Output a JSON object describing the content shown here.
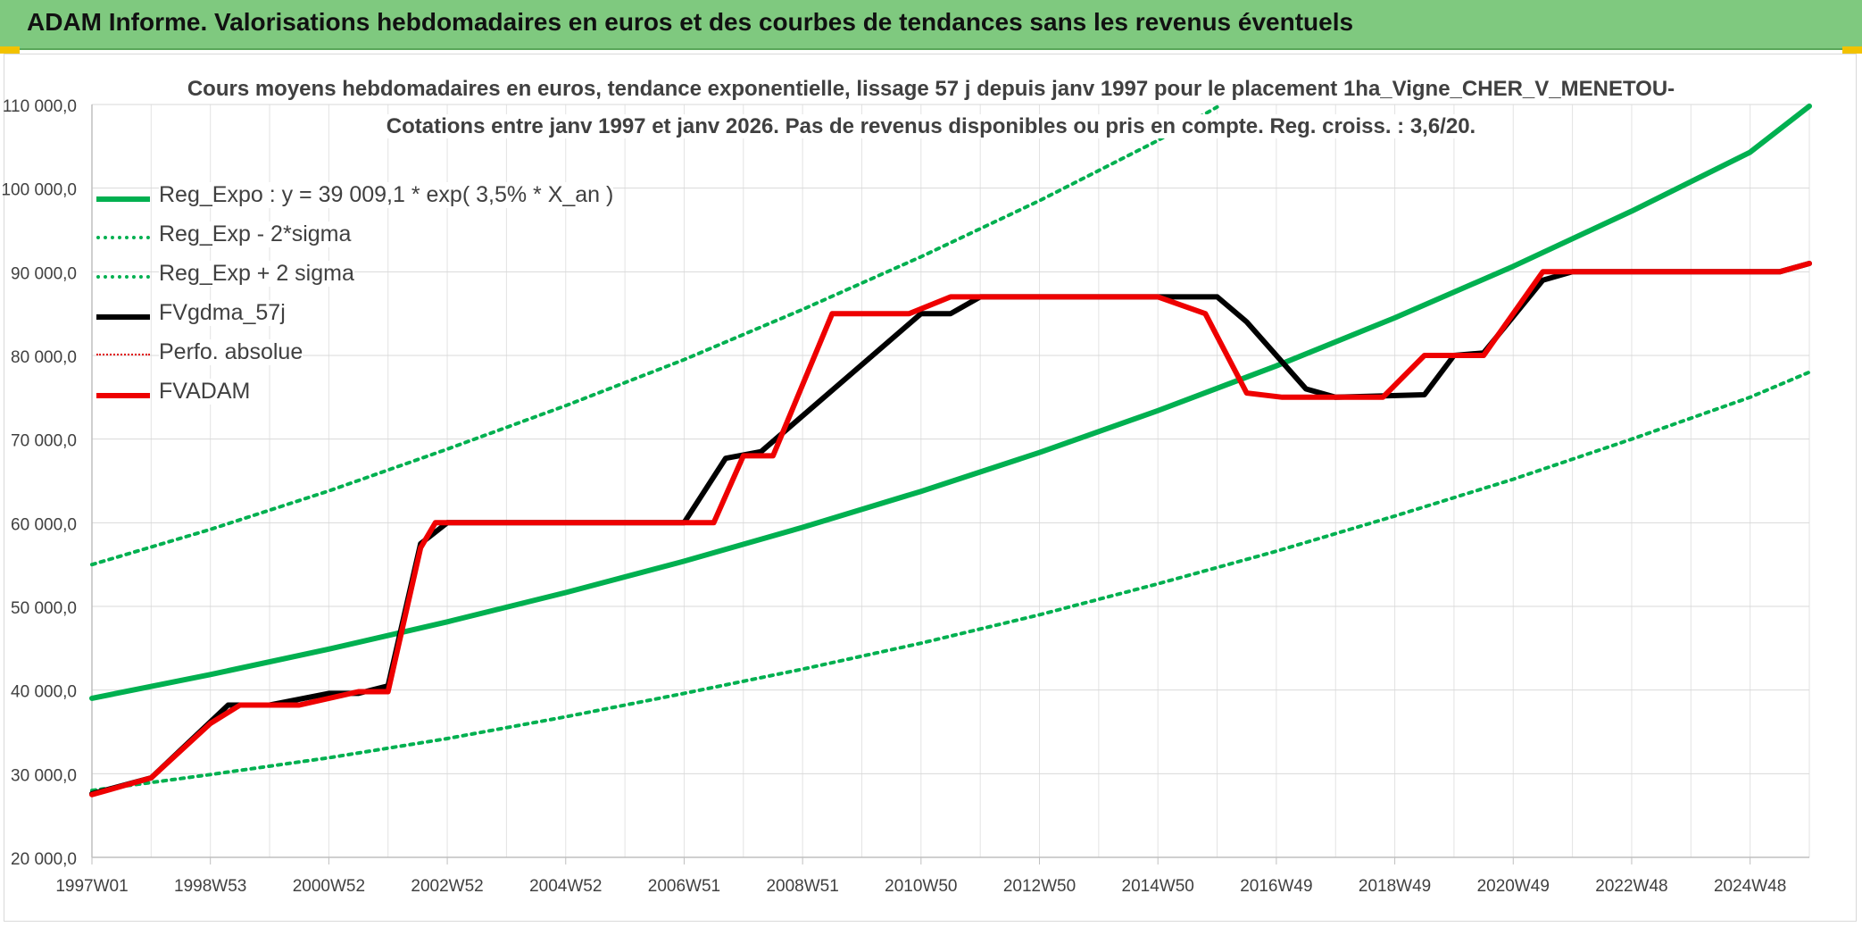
{
  "header": {
    "title": "ADAM Informe. Valorisations hebdomadaires en euros et des courbes de tendances sans les revenus éventuels"
  },
  "chart_data": {
    "type": "line",
    "title_line1": "Cours moyens hebdomadaires en euros, tendance exponentielle, lissage 57 j depuis janv 1997 pour le placement 1ha_Vigne_CHER_V_MENETOU-",
    "title_line2": "Cotations entre janv 1997 et janv 2026. Pas de revenus disponibles ou pris en compte. Reg. croiss. : 3,6/20.",
    "xlabel": "",
    "ylabel": "",
    "xlim": [
      1997.0,
      2026.0
    ],
    "ylim": [
      20000,
      110000
    ],
    "y_ticks": [
      {
        "value": 20000,
        "label": "20 000,0"
      },
      {
        "value": 30000,
        "label": "30 000,0"
      },
      {
        "value": 40000,
        "label": "40 000,0"
      },
      {
        "value": 50000,
        "label": "50 000,0"
      },
      {
        "value": 60000,
        "label": "60 000,0"
      },
      {
        "value": 70000,
        "label": "70 000,0"
      },
      {
        "value": 80000,
        "label": "80 000,0"
      },
      {
        "value": 90000,
        "label": "90 000,0"
      },
      {
        "value": 100000,
        "label": "100 000,0"
      },
      {
        "value": 110000,
        "label": "110 000,0"
      }
    ],
    "x_ticks": [
      {
        "value": 1997.0,
        "label": "1997W01"
      },
      {
        "value": 1999.0,
        "label": "1998W53"
      },
      {
        "value": 2001.0,
        "label": "2000W52"
      },
      {
        "value": 2003.0,
        "label": "2002W52"
      },
      {
        "value": 2005.0,
        "label": "2004W52"
      },
      {
        "value": 2007.0,
        "label": "2006W51"
      },
      {
        "value": 2009.0,
        "label": "2008W51"
      },
      {
        "value": 2011.0,
        "label": "2010W50"
      },
      {
        "value": 2013.0,
        "label": "2012W50"
      },
      {
        "value": 2015.0,
        "label": "2014W50"
      },
      {
        "value": 2017.0,
        "label": "2016W49"
      },
      {
        "value": 2019.0,
        "label": "2018W49"
      },
      {
        "value": 2021.0,
        "label": "2020W49"
      },
      {
        "value": 2023.0,
        "label": "2022W48"
      },
      {
        "value": 2025.0,
        "label": "2024W48"
      }
    ],
    "grid": true,
    "legend_position": "top-left",
    "series": [
      {
        "name": "Reg_Expo : y = 39 009,1 * exp( 3,5% *  X_an )",
        "style": "solid-thick",
        "color": "#00b050",
        "x": [
          1997.0,
          1999.0,
          2001.0,
          2003.0,
          2005.0,
          2007.0,
          2009.0,
          2011.0,
          2013.0,
          2015.0,
          2017.0,
          2019.0,
          2021.0,
          2023.0,
          2025.0,
          2026.0
        ],
        "values": [
          39009,
          41850,
          44900,
          48150,
          51650,
          55400,
          59450,
          63750,
          68400,
          73400,
          78750,
          84500,
          90650,
          97250,
          104300,
          109800
        ]
      },
      {
        "name": "Reg_Exp - 2*sigma",
        "style": "dotted",
        "color": "#00b050",
        "x": [
          1997.0,
          1999.0,
          2001.0,
          2003.0,
          2005.0,
          2007.0,
          2009.0,
          2011.0,
          2013.0,
          2015.0,
          2017.0,
          2019.0,
          2021.0,
          2023.0,
          2025.0,
          2026.0
        ],
        "values": [
          28000,
          29900,
          31900,
          34200,
          36800,
          39600,
          42500,
          45600,
          49000,
          52700,
          56600,
          60800,
          65200,
          70000,
          75000,
          78000
        ]
      },
      {
        "name": "Reg_Exp + 2 sigma",
        "style": "dotted",
        "color": "#00b050",
        "x": [
          1997.0,
          1999.0,
          2001.0,
          2003.0,
          2005.0,
          2007.0,
          2009.0,
          2011.0,
          2013.0,
          2015.0,
          2016.0
        ],
        "values": [
          55000,
          59200,
          63800,
          68800,
          74000,
          79500,
          85500,
          91800,
          98500,
          105700,
          109700
        ]
      },
      {
        "name": "FVgdma_57j",
        "style": "solid-thick",
        "color": "#000000",
        "x": [
          1997.0,
          1998.0,
          1999.0,
          1999.3,
          2000.0,
          2001.0,
          2001.5,
          2002.0,
          2002.55,
          2003.0,
          2007.0,
          2007.7,
          2008.3,
          2011.0,
          2011.5,
          2012.0,
          2016.0,
          2016.5,
          2017.5,
          2018.0,
          2019.5,
          2020.0,
          2020.5,
          2021.5,
          2022.0,
          2025.5,
          2026.0
        ],
        "values": [
          27600,
          29500,
          36200,
          38200,
          38200,
          39600,
          39600,
          40500,
          57500,
          60000,
          60000,
          67700,
          68500,
          85000,
          85000,
          87000,
          87000,
          84000,
          76000,
          75000,
          75300,
          80000,
          80300,
          89000,
          90000,
          90000,
          91000
        ]
      },
      {
        "name": "Perfo. absolue",
        "style": "dotted-thin",
        "color": "#e00000",
        "x": [],
        "values": []
      },
      {
        "name": "FVADAM",
        "style": "solid-thick",
        "color": "#ee0000",
        "x": [
          1997.0,
          1998.0,
          1999.0,
          1999.5,
          2000.5,
          2001.5,
          2002.0,
          2002.55,
          2002.8,
          2006.5,
          2007.5,
          2008.0,
          2008.5,
          2009.5,
          2010.0,
          2010.8,
          2011.5,
          2012.0,
          2015.0,
          2015.8,
          2016.5,
          2017.1,
          2018.0,
          2018.8,
          2019.5,
          2020.0,
          2020.5,
          2021.5,
          2022.0,
          2025.5,
          2026.0
        ],
        "values": [
          27500,
          29500,
          36000,
          38200,
          38200,
          39800,
          39800,
          57000,
          60000,
          60000,
          60000,
          68000,
          68000,
          85000,
          85000,
          85000,
          87000,
          87000,
          87000,
          85000,
          75500,
          75000,
          75000,
          75000,
          80000,
          80000,
          80000,
          90000,
          90000,
          90000,
          91000
        ]
      }
    ]
  }
}
